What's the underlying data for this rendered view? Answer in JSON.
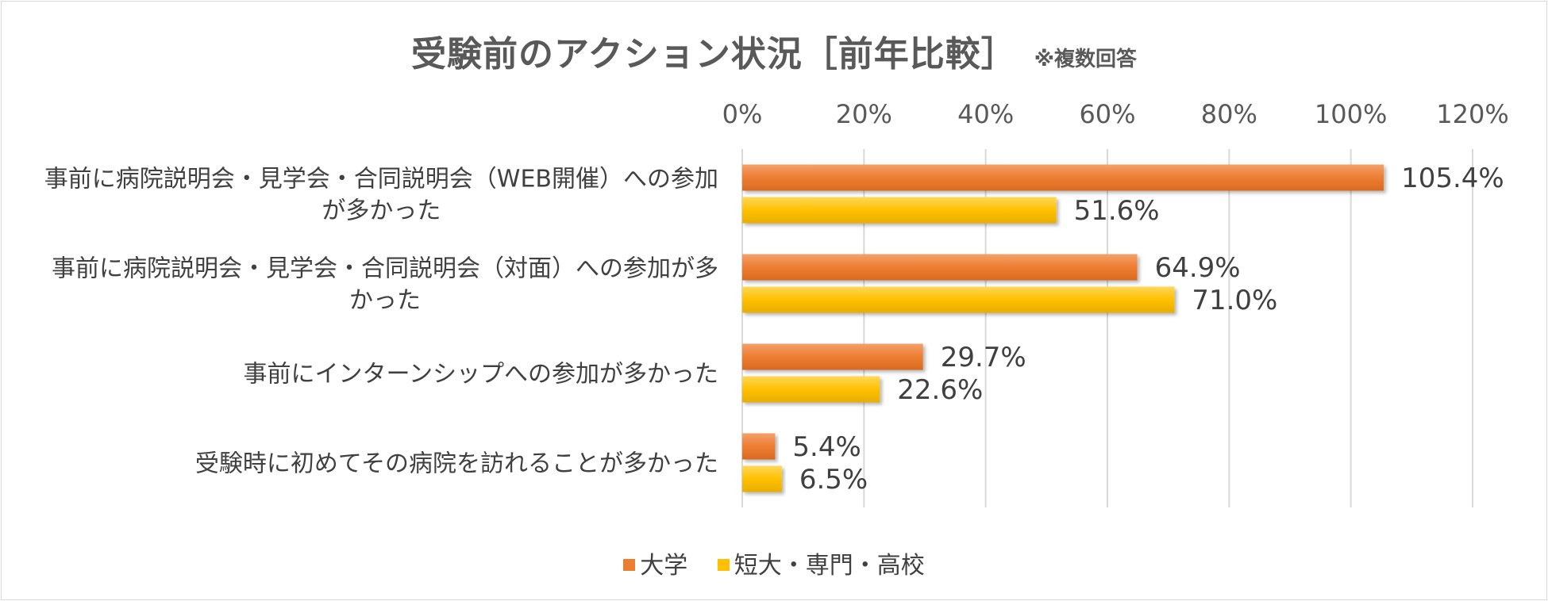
{
  "chart_data": {
    "type": "bar",
    "orientation": "horizontal",
    "title": "受験前のアクション状況［前年比較］",
    "subtitle": "※複数回答",
    "categories": [
      [
        "事前に病院説明会・見学会・合同説明会（WEB開催）への参加",
        "が多かった"
      ],
      [
        "事前に病院説明会・見学会・合同説明会（対面）への参加が多",
        "かった"
      ],
      [
        "事前にインターンシップへの参加が多かった"
      ],
      [
        "受験時に初めてその病院を訪れることが多かった"
      ]
    ],
    "series": [
      {
        "name": "大学",
        "color": "#ED7D31",
        "values": [
          105.4,
          64.9,
          29.7,
          5.4
        ]
      },
      {
        "name": "短大・専門・高校",
        "color": "#FFC000",
        "values": [
          51.6,
          71.0,
          22.6,
          6.5
        ]
      }
    ],
    "xlim": [
      0,
      120
    ],
    "ticks": [
      0,
      20,
      40,
      60,
      80,
      100,
      120
    ],
    "tick_suffix": "%",
    "value_suffix": "%",
    "value_decimals": 1,
    "grid": true,
    "legend_position": "bottom"
  }
}
